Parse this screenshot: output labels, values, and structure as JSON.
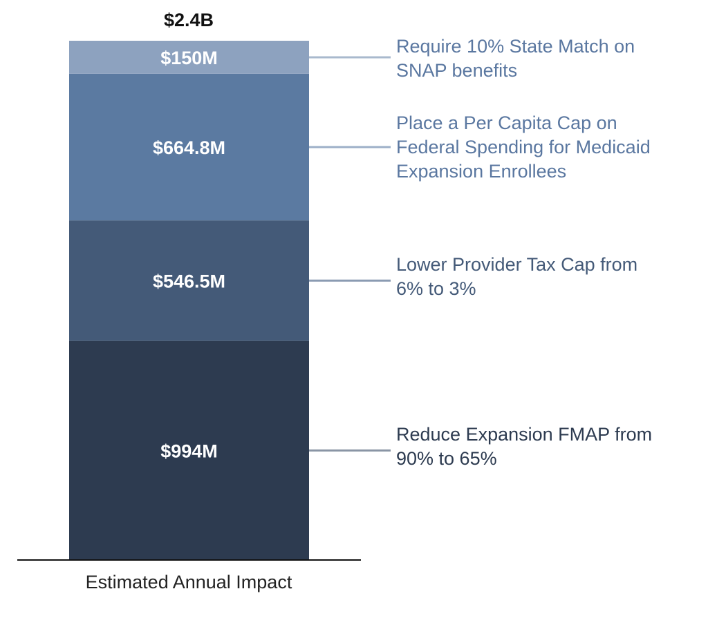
{
  "chart_data": {
    "type": "bar",
    "stacked": true,
    "categories": [
      "Estimated Annual Impact"
    ],
    "total_label": "$2.4B",
    "ylim": [
      0,
      2355.3
    ],
    "series": [
      {
        "name": "Reduce Expansion FMAP from 90% to 65%",
        "name_lines": [
          "Reduce Expansion FMAP from",
          "90% to 65%"
        ],
        "values": [
          994
        ],
        "label": "$994M",
        "color": "#2d3b50",
        "text_color": "#2d3b50",
        "connector_color": "#8a95a5"
      },
      {
        "name": "Lower Provider Tax Cap from 6% to 3%",
        "name_lines": [
          "Lower Provider Tax Cap from",
          "6% to 3%"
        ],
        "values": [
          546.5
        ],
        "label": "$546.5M",
        "color": "#445a78",
        "text_color": "#445a78",
        "connector_color": "#8b9bb2"
      },
      {
        "name": "Place a Per Capita Cap on Federal Spending for Medicaid Expansion Enrollees",
        "name_lines": [
          "Place a Per Capita Cap on",
          "Federal Spending for Medicaid",
          "Expansion Enrollees"
        ],
        "values": [
          664.8
        ],
        "label": "$664.8M",
        "color": "#5b7aa1",
        "text_color": "#5a77a0",
        "connector_color": "#9db0c8"
      },
      {
        "name": "Require 10% State Match on SNAP benefits",
        "name_lines": [
          "Require 10% State Match on",
          "SNAP benefits"
        ],
        "values": [
          150
        ],
        "label": "$150M",
        "color": "#8da2bf",
        "text_color": "#5a77a0",
        "connector_color": "#a9b9cd"
      }
    ]
  }
}
